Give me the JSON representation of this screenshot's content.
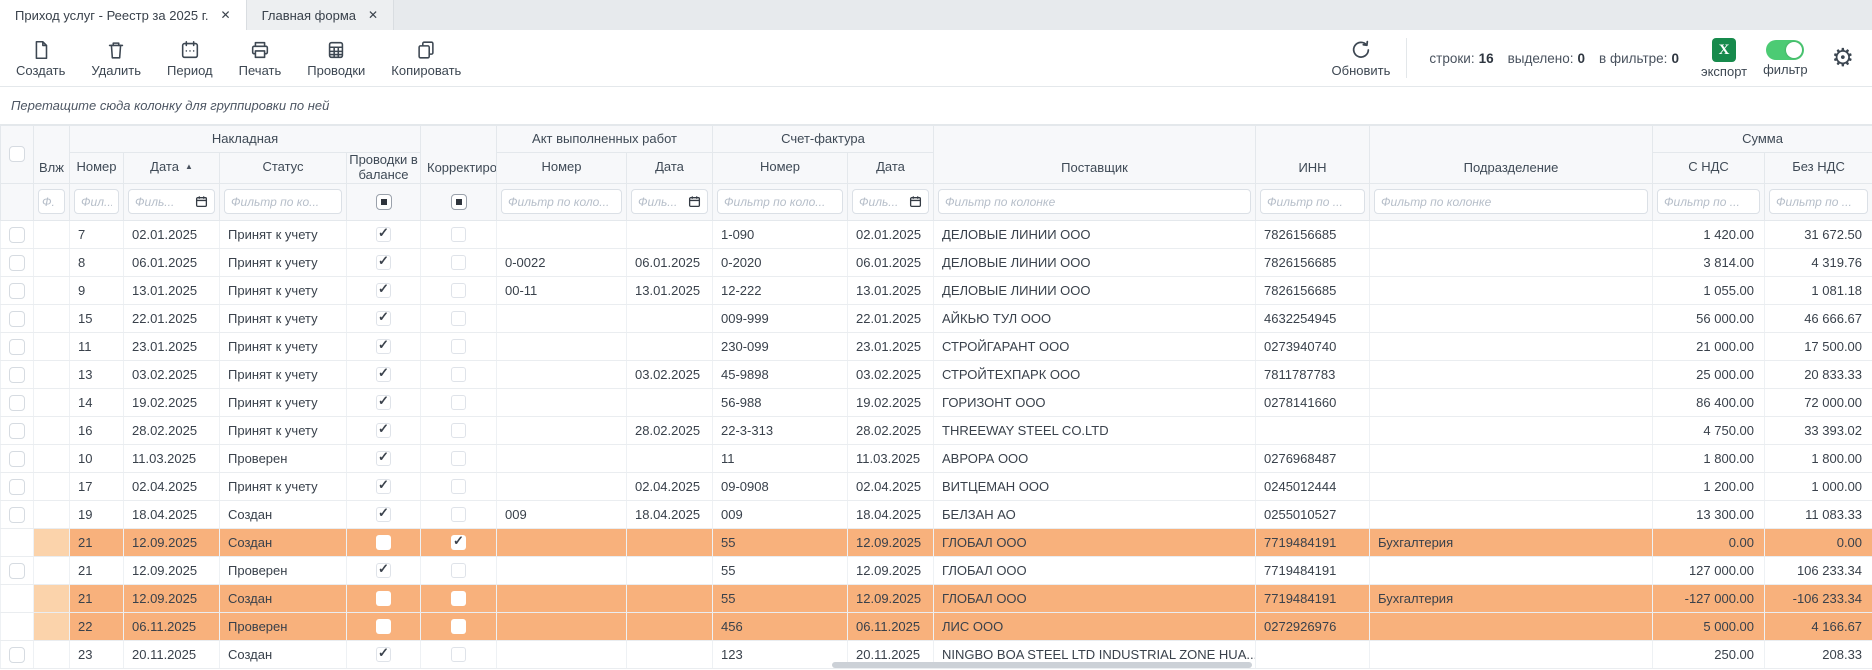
{
  "tabs": [
    {
      "label": "Приход услуг - Реестр за 2025 г.",
      "close_icon": "✕"
    },
    {
      "label": "Главная форма",
      "close_icon": "✕"
    }
  ],
  "toolbar": {
    "create_label": "Создать",
    "delete_label": "Удалить",
    "period_label": "Период",
    "print_label": "Печать",
    "postings_label": "Проводки",
    "copy_label": "Копировать",
    "refresh_label": "Обновить",
    "stats": {
      "rows_label": "строки:",
      "rows_value": "16",
      "selected_label": "выделено:",
      "selected_value": "0",
      "in_filter_label": "в фильтре:",
      "in_filter_value": "0"
    },
    "export_label": "экспорт",
    "export_icon_letter": "X",
    "filter_label": "фильтр",
    "accent_green": "#178a4c",
    "toggle_green": "#4ccb74"
  },
  "groupbar": {
    "hint": "Перетащите сюда колонку для группировки по ней"
  },
  "table": {
    "group_headers": {
      "nakladnaya": "Накладная",
      "akt": "Акт выполненных работ",
      "schet_faktura": "Счет-фактура",
      "summa": "Сумма"
    },
    "columns": {
      "vlozh": "Влж",
      "nomer": "Номер",
      "data": "Дата",
      "status": "Статус",
      "provodki": "Проводки в балансе",
      "korrektirovka": "Корректировка",
      "akt_nomer": "Номер",
      "akt_data": "Дата",
      "sf_nomer": "Номер",
      "sf_data": "Дата",
      "postavshchik": "Поставщик",
      "inn": "ИНН",
      "podrazdelenie": "Подразделение",
      "s_nds": "С НДС",
      "bez_nds": "Без НДС"
    },
    "sort_icon": "▲",
    "filters": {
      "vlozh": "Ф.",
      "nomer": "Фил...",
      "data": "Филь...",
      "status": "Фильтр по ко...",
      "akt_nomer": "Фильтр по коло...",
      "akt_data": "Филь...",
      "sf_nomer": "Фильтр по коло...",
      "sf_data": "Филь...",
      "postavshchik": "Фильтр по колонке",
      "inn": "Фильтр по ...",
      "podrazdelenie": "Фильтр по колонке",
      "s_nds": "Фильтр по ...",
      "bez_nds": "Фильтр по ..."
    },
    "highlight_color": "#f8b17c",
    "rows": [
      {
        "nomer": "7",
        "data": "02.01.2025",
        "status": "Принят к учету",
        "provodki": true,
        "korrektirovka": false,
        "akt_nomer": "",
        "akt_data": "",
        "sf_nomer": "1-090",
        "sf_data": "02.01.2025",
        "postavshchik": "ДЕЛОВЫЕ ЛИНИИ ООО",
        "inn": "7826156685",
        "podrazdelenie": "",
        "s_nds": "1 420.00",
        "bez_nds": "31 672.50",
        "highlight": false
      },
      {
        "nomer": "8",
        "data": "06.01.2025",
        "status": "Принят к учету",
        "provodki": true,
        "korrektirovka": false,
        "akt_nomer": "0-0022",
        "akt_data": "06.01.2025",
        "sf_nomer": "0-2020",
        "sf_data": "06.01.2025",
        "postavshchik": "ДЕЛОВЫЕ ЛИНИИ ООО",
        "inn": "7826156685",
        "podrazdelenie": "",
        "s_nds": "3 814.00",
        "bez_nds": "4 319.76",
        "highlight": false
      },
      {
        "nomer": "9",
        "data": "13.01.2025",
        "status": "Принят к учету",
        "provodki": true,
        "korrektirovka": false,
        "akt_nomer": "00-11",
        "akt_data": "13.01.2025",
        "sf_nomer": "12-222",
        "sf_data": "13.01.2025",
        "postavshchik": "ДЕЛОВЫЕ ЛИНИИ ООО",
        "inn": "7826156685",
        "podrazdelenie": "",
        "s_nds": "1 055.00",
        "bez_nds": "1 081.18",
        "highlight": false
      },
      {
        "nomer": "15",
        "data": "22.01.2025",
        "status": "Принят к учету",
        "provodki": true,
        "korrektirovka": false,
        "akt_nomer": "",
        "akt_data": "",
        "sf_nomer": "009-999",
        "sf_data": "22.01.2025",
        "postavshchik": "АЙКЬЮ ТУЛ ООО",
        "inn": "4632254945",
        "podrazdelenie": "",
        "s_nds": "56 000.00",
        "bez_nds": "46 666.67",
        "highlight": false
      },
      {
        "nomer": "11",
        "data": "23.01.2025",
        "status": "Принят к учету",
        "provodki": true,
        "korrektirovka": false,
        "akt_nomer": "",
        "akt_data": "",
        "sf_nomer": "230-099",
        "sf_data": "23.01.2025",
        "postavshchik": "СТРОЙГАРАНТ ООО",
        "inn": "0273940740",
        "podrazdelenie": "",
        "s_nds": "21 000.00",
        "bez_nds": "17 500.00",
        "highlight": false
      },
      {
        "nomer": "13",
        "data": "03.02.2025",
        "status": "Принят к учету",
        "provodki": true,
        "korrektirovka": false,
        "akt_nomer": "",
        "akt_data": "03.02.2025",
        "sf_nomer": "45-9898",
        "sf_data": "03.02.2025",
        "postavshchik": "СТРОЙТЕХПАРК ООО",
        "inn": "7811787783",
        "podrazdelenie": "",
        "s_nds": "25 000.00",
        "bez_nds": "20 833.33",
        "highlight": false
      },
      {
        "nomer": "14",
        "data": "19.02.2025",
        "status": "Принят к учету",
        "provodki": true,
        "korrektirovka": false,
        "akt_nomer": "",
        "akt_data": "",
        "sf_nomer": "56-988",
        "sf_data": "19.02.2025",
        "postavshchik": "ГОРИЗОНТ ООО",
        "inn": "0278141660",
        "podrazdelenie": "",
        "s_nds": "86 400.00",
        "bez_nds": "72 000.00",
        "highlight": false
      },
      {
        "nomer": "16",
        "data": "28.02.2025",
        "status": "Принят к учету",
        "provodki": true,
        "korrektirovka": false,
        "akt_nomer": "",
        "akt_data": "28.02.2025",
        "sf_nomer": "22-3-313",
        "sf_data": "28.02.2025",
        "postavshchik": "THREEWAY STEEL CO.LTD",
        "inn": "",
        "podrazdelenie": "",
        "s_nds": "4 750.00",
        "bez_nds": "33 393.02",
        "highlight": false
      },
      {
        "nomer": "10",
        "data": "11.03.2025",
        "status": "Проверен",
        "provodki": true,
        "korrektirovka": false,
        "akt_nomer": "",
        "akt_data": "",
        "sf_nomer": "11",
        "sf_data": "11.03.2025",
        "postavshchik": "АВРОРА ООО",
        "inn": "0276968487",
        "podrazdelenie": "",
        "s_nds": "1 800.00",
        "bez_nds": "1 800.00",
        "highlight": false
      },
      {
        "nomer": "17",
        "data": "02.04.2025",
        "status": "Принят к учету",
        "provodki": true,
        "korrektirovka": false,
        "akt_nomer": "",
        "akt_data": "02.04.2025",
        "sf_nomer": "09-0908",
        "sf_data": "02.04.2025",
        "postavshchik": "ВИТЦЕМАН ООО",
        "inn": "0245012444",
        "podrazdelenie": "",
        "s_nds": "1 200.00",
        "bez_nds": "1 000.00",
        "highlight": false
      },
      {
        "nomer": "19",
        "data": "18.04.2025",
        "status": "Создан",
        "provodki": true,
        "korrektirovka": false,
        "akt_nomer": "009",
        "akt_data": "18.04.2025",
        "sf_nomer": "009",
        "sf_data": "18.04.2025",
        "postavshchik": "БЕЛЗАН АО",
        "inn": "0255010527",
        "podrazdelenie": "",
        "s_nds": "13 300.00",
        "bez_nds": "11 083.33",
        "highlight": false
      },
      {
        "nomer": "21",
        "data": "12.09.2025",
        "status": "Создан",
        "provodki": false,
        "korrektirovka": true,
        "akt_nomer": "",
        "akt_data": "",
        "sf_nomer": "55",
        "sf_data": "12.09.2025",
        "postavshchik": "ГЛОБАЛ ООО",
        "inn": "7719484191",
        "podrazdelenie": "Бухгалтерия",
        "s_nds": "0.00",
        "bez_nds": "0.00",
        "highlight": true
      },
      {
        "nomer": "21",
        "data": "12.09.2025",
        "status": "Проверен",
        "provodki": true,
        "korrektirovka": false,
        "akt_nomer": "",
        "akt_data": "",
        "sf_nomer": "55",
        "sf_data": "12.09.2025",
        "postavshchik": "ГЛОБАЛ ООО",
        "inn": "7719484191",
        "podrazdelenie": "",
        "s_nds": "127 000.00",
        "bez_nds": "106 233.34",
        "highlight": false
      },
      {
        "nomer": "21",
        "data": "12.09.2025",
        "status": "Создан",
        "provodki": false,
        "korrektirovka": false,
        "akt_nomer": "",
        "akt_data": "",
        "sf_nomer": "55",
        "sf_data": "12.09.2025",
        "postavshchik": "ГЛОБАЛ ООО",
        "inn": "7719484191",
        "podrazdelenie": "Бухгалтерия",
        "s_nds": "-127 000.00",
        "bez_nds": "-106 233.34",
        "highlight": true
      },
      {
        "nomer": "22",
        "data": "06.11.2025",
        "status": "Проверен",
        "provodki": false,
        "korrektirovka": false,
        "akt_nomer": "",
        "akt_data": "",
        "sf_nomer": "456",
        "sf_data": "06.11.2025",
        "postavshchik": "ЛИС ООО",
        "inn": "0272926976",
        "podrazdelenie": "",
        "s_nds": "5 000.00",
        "bez_nds": "4 166.67",
        "highlight": true
      },
      {
        "nomer": "23",
        "data": "20.11.2025",
        "status": "Создан",
        "provodki": true,
        "korrektirovka": false,
        "akt_nomer": "",
        "akt_data": "",
        "sf_nomer": "123",
        "sf_data": "20.11.2025",
        "postavshchik": "NINGBO BOA STEEL LTD INDUSTRIAL ZONE HUA...",
        "inn": "",
        "podrazdelenie": "",
        "s_nds": "250.00",
        "bez_nds": "208.33",
        "highlight": false
      }
    ]
  }
}
